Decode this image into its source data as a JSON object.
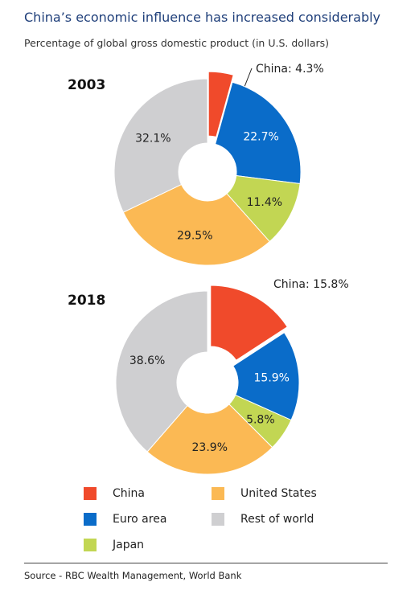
{
  "header": {
    "title": "China’s economic influence has increased considerably",
    "subtitle": "Percentage of global gross domestic product (in U.S. dollars)"
  },
  "colors": {
    "China": "#f04a2b",
    "Euro area": "#0a6cc9",
    "Japan": "#c2d653",
    "United States": "#fbb954",
    "Rest of world": "#cfcfd1"
  },
  "chart_data": [
    {
      "type": "pie",
      "title": "2003",
      "categories": [
        "China",
        "Euro area",
        "Japan",
        "United States",
        "Rest of world"
      ],
      "values": [
        4.3,
        22.7,
        11.4,
        29.5,
        32.1
      ],
      "labels": [
        "China: 4.3%",
        "22.7%",
        "11.4%",
        "29.5%",
        "32.1%"
      ],
      "exploded": "China"
    },
    {
      "type": "pie",
      "title": "2018",
      "categories": [
        "China",
        "Euro area",
        "Japan",
        "United States",
        "Rest of world"
      ],
      "values": [
        15.8,
        15.9,
        5.8,
        23.9,
        38.6
      ],
      "labels": [
        "China: 15.8%",
        "15.9%",
        "5.8%",
        "23.9%",
        "38.6%"
      ],
      "exploded": "China"
    }
  ],
  "legend": {
    "items": [
      {
        "label": "China"
      },
      {
        "label": "United States"
      },
      {
        "label": "Euro area"
      },
      {
        "label": "Rest of world"
      },
      {
        "label": "Japan"
      }
    ]
  },
  "footer": {
    "source": "Source - RBC Wealth Management, World Bank"
  }
}
